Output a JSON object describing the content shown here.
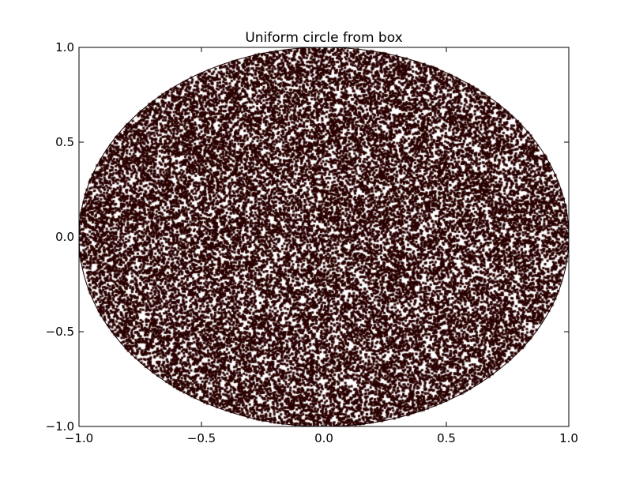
{
  "chart_data": {
    "type": "scatter",
    "title": "Uniform circle from box",
    "xlabel": "",
    "ylabel": "",
    "xlim": [
      -1.0,
      1.0
    ],
    "ylim": [
      -1.0,
      1.0
    ],
    "xticks": [
      -1.0,
      -0.5,
      0.0,
      0.5,
      1.0
    ],
    "yticks": [
      -1.0,
      -0.5,
      0.0,
      0.5,
      1.0
    ],
    "xtick_labels": [
      "−1.0",
      "−0.5",
      "0.0",
      "0.5",
      "1.0"
    ],
    "ytick_labels": [
      "−1.0",
      "−0.5",
      "0.0",
      "0.5",
      "1.0"
    ],
    "grid": false,
    "legend": "none",
    "series": [
      {
        "description_shape": "points uniformly distributed inside the unit circle",
        "circle_center": [
          0.0,
          0.0
        ],
        "circle_radius": 1.0,
        "point_count_approx": 30000,
        "color": "#2a0000"
      }
    ]
  }
}
